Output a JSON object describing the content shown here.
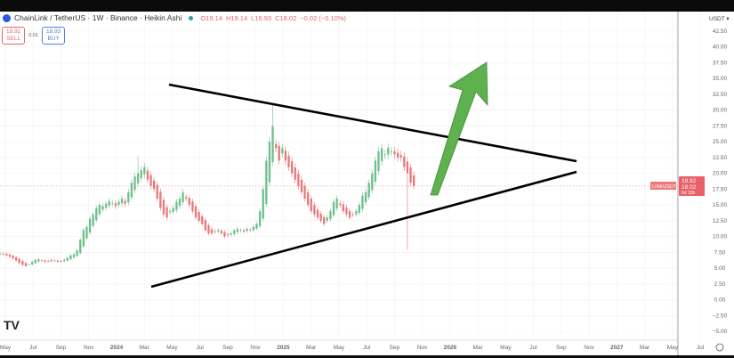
{
  "header": {
    "title": "ChainLink / TetherUS · 1W · Binance · Heikin Ashi",
    "open": "O19.14",
    "high": "H19.14",
    "low": "L16.93",
    "close": "C18.02",
    "change": "−0.02 (−0.10%)"
  },
  "trade": {
    "sell_price": "18.92",
    "sell_label": "SELL",
    "spread": "0.01",
    "buy_price": "18.93",
    "buy_label": "BUY"
  },
  "currency": "USDT ▾",
  "price_labels": {
    "ask": "18.92",
    "last": "18.02",
    "countdown": "6d 15h",
    "symbol": "LINKUSDT"
  },
  "colors": {
    "up": "#6cc08b",
    "down": "#e8787a",
    "grid": "#f1f1f1",
    "arrow": "#5fb04f",
    "accent": "#e0686b"
  },
  "chart_data": {
    "type": "candlestick",
    "style": "Heikin Ashi",
    "interval": "1W",
    "x_start": "2023-04-24",
    "ylim": [
      -5,
      42.5
    ],
    "y_ticks": [
      "42.50",
      "40.00",
      "37.50",
      "35.00",
      "32.50",
      "30.00",
      "27.50",
      "25.00",
      "22.50",
      "20.00",
      "17.50",
      "15.00",
      "12.50",
      "10.00",
      "7.50",
      "5.00",
      "2.50",
      "0.00",
      "−2.50",
      "−5.00"
    ],
    "x_ticks": [
      "May",
      "Jul",
      "Sep",
      "Nov",
      "2024",
      "Mar",
      "May",
      "Jul",
      "Sep",
      "Nov",
      "2025",
      "Mar",
      "May",
      "Jul",
      "Sep",
      "Nov",
      "2026",
      "Mar",
      "May",
      "Jul",
      "Sep",
      "Nov",
      "2027",
      "Mar",
      "May",
      "Jul"
    ],
    "closes": [
      7.3,
      7.2,
      7.0,
      6.8,
      6.5,
      6.2,
      5.8,
      5.5,
      5.3,
      5.6,
      6.0,
      6.3,
      6.4,
      6.2,
      6.0,
      6.1,
      6.3,
      6.2,
      6.0,
      6.1,
      6.3,
      6.6,
      7.0,
      7.2,
      7.8,
      9.5,
      11.0,
      11.5,
      12.8,
      13.5,
      14.5,
      15.0,
      14.8,
      15.2,
      15.6,
      15.3,
      14.8,
      15.5,
      16.0,
      15.2,
      17.0,
      18.5,
      19.5,
      20.0,
      20.5,
      21.0,
      19.0,
      18.0,
      17.5,
      16.0,
      14.5,
      13.5,
      13.0,
      14.0,
      14.5,
      15.5,
      16.0,
      17.0,
      16.0,
      15.0,
      14.0,
      13.0,
      12.5,
      12.0,
      11.0,
      10.5,
      10.5,
      10.8,
      11.0,
      10.5,
      10.0,
      10.2,
      10.5,
      11.0,
      11.2,
      11.0,
      10.8,
      11.2,
      11.0,
      11.5,
      12.0,
      14.0,
      17.5,
      22.0,
      25.0,
      27.5,
      24.0,
      22.0,
      24.0,
      22.0,
      21.0,
      20.0,
      19.0,
      18.0,
      17.0,
      16.0,
      15.0,
      14.0,
      13.5,
      13.0,
      12.5,
      12.0,
      13.0,
      14.0,
      15.5,
      16.0,
      15.0,
      14.0,
      13.5,
      13.0,
      13.5,
      14.0,
      15.0,
      16.5,
      17.0,
      18.5,
      20.0,
      22.0,
      23.5,
      24.0,
      23.0,
      24.0,
      23.5,
      23.0,
      22.5,
      22.5,
      21.0,
      20.0,
      18.5,
      18.02
    ],
    "extreme_wicks": [
      {
        "week": 85,
        "high": 31.0
      },
      {
        "week": 127,
        "low": 7.9
      },
      {
        "week": 43,
        "high": 22.8
      }
    ],
    "last_price": 18.02
  }
}
